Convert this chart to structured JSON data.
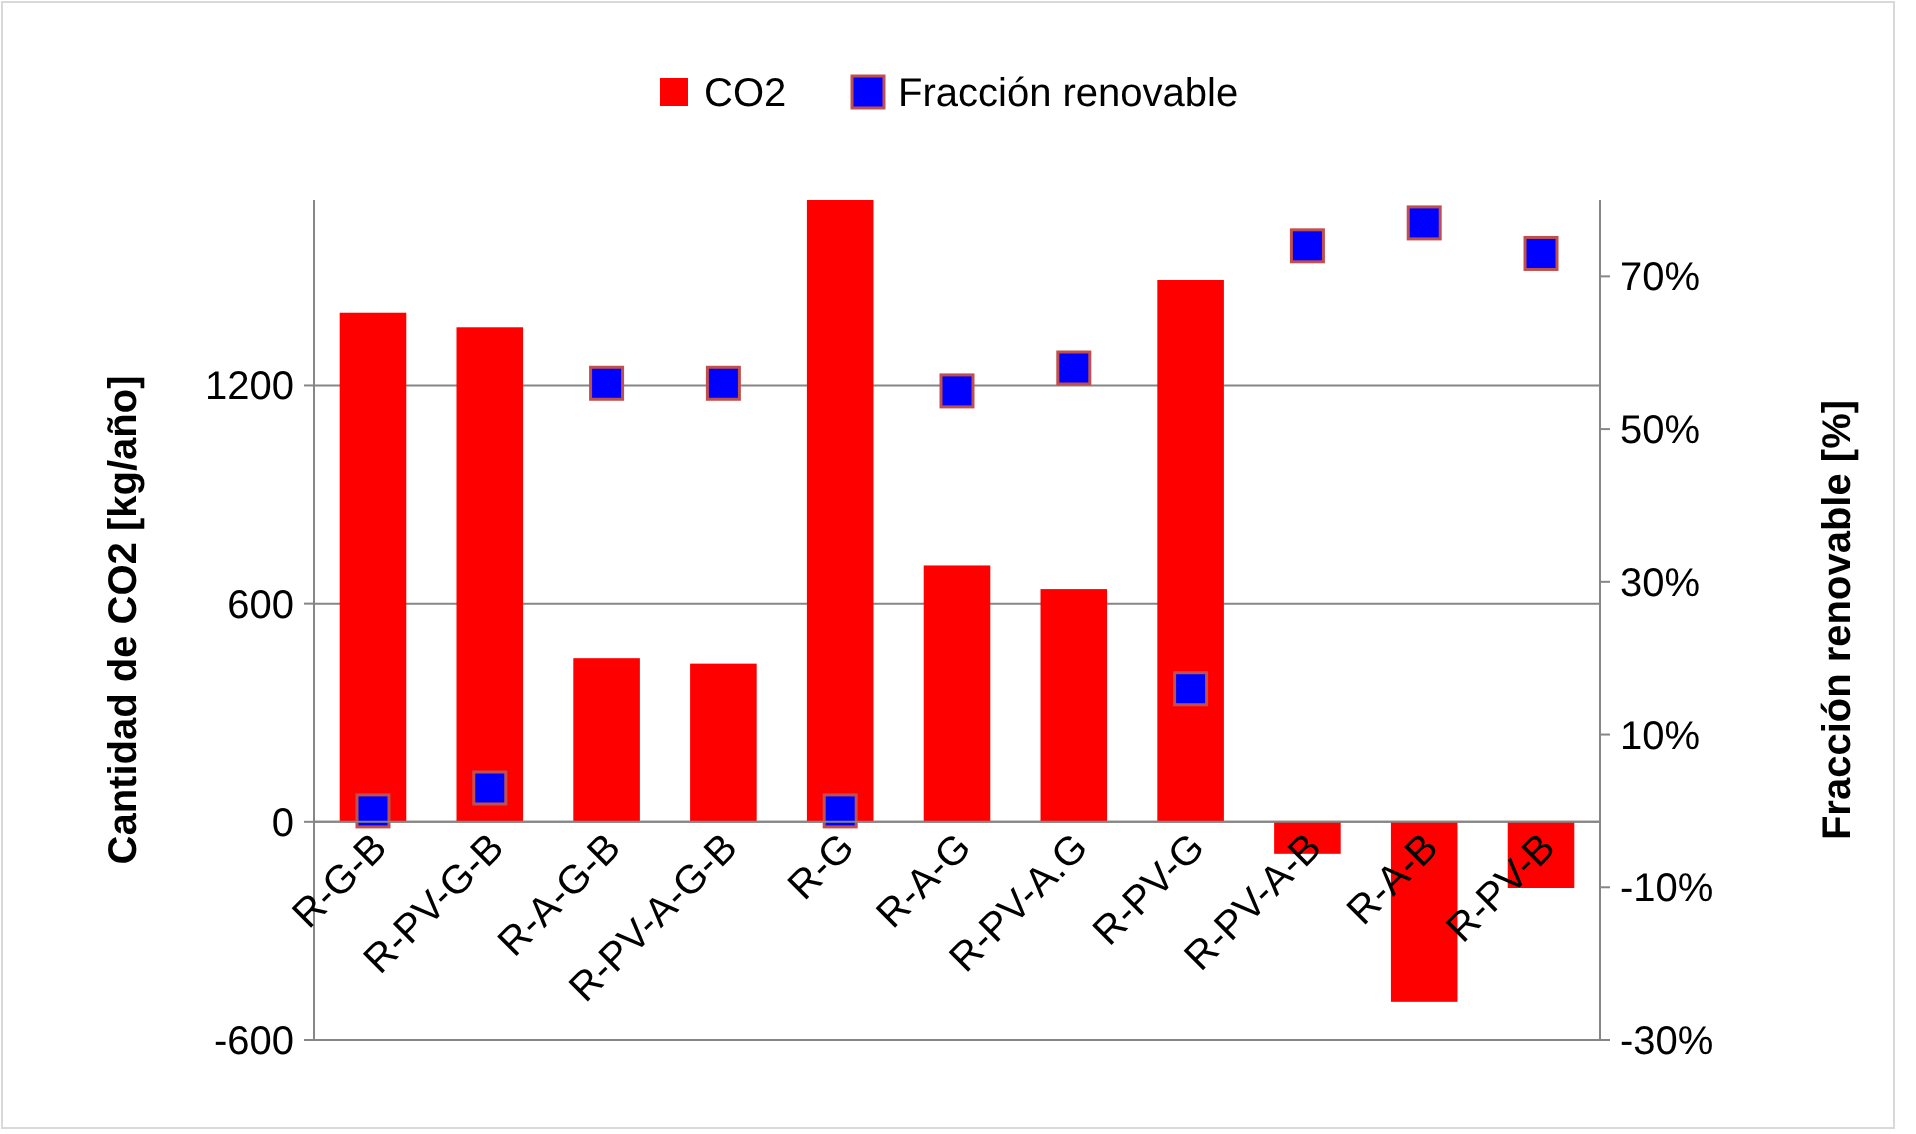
{
  "chart_data": {
    "type": "bar",
    "categories": [
      "R-G-B",
      "R-PV-G-B",
      "R-A-G-B",
      "R-PV-A-G-B",
      "R-G",
      "R-A-G",
      "R-PV-A.G",
      "R-PV-G",
      "R-PV-A-B",
      "R-A-B",
      "R-PV-B"
    ],
    "series": [
      {
        "name": "CO2",
        "color": "#ff0000",
        "values": [
          1400,
          1360,
          450,
          435,
          1710,
          705,
          640,
          1490,
          -88,
          -495,
          -182
        ]
      },
      {
        "name": "Fracción renovable",
        "type": "scatter",
        "axis": "y2",
        "color": "#0000ff",
        "marker": "square",
        "values": [
          0,
          3,
          56,
          56,
          0,
          55,
          58,
          16,
          74,
          77,
          73
        ]
      }
    ],
    "ylabel": "Cantidad de CO2 [kg/año]",
    "y2label": "Fracción renovable [%]",
    "ylim": [
      -600,
      1710
    ],
    "yticks": [
      -600,
      0,
      600,
      1200
    ],
    "y2lim": [
      -30,
      80
    ],
    "y2ticks": [
      {
        "value": -30,
        "label": "-30%"
      },
      {
        "value": -10,
        "label": "-10%"
      },
      {
        "value": 10,
        "label": "10%"
      },
      {
        "value": 30,
        "label": "30%"
      },
      {
        "value": 50,
        "label": "50%"
      },
      {
        "value": 70,
        "label": "70%"
      }
    ],
    "grid": "y",
    "legend": "top"
  }
}
